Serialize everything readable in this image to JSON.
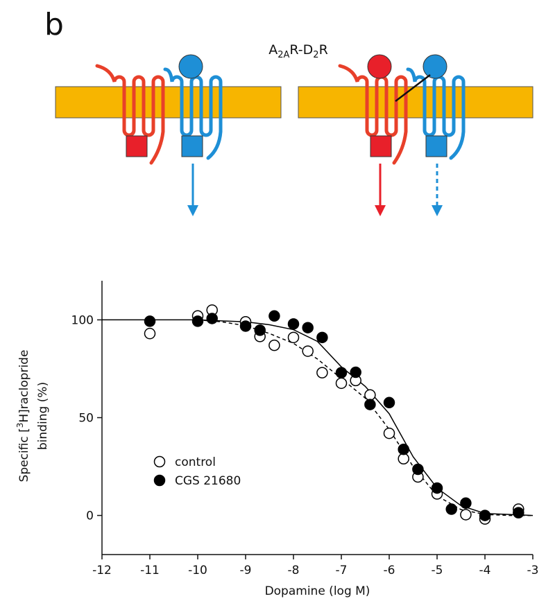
{
  "panel_label": "b",
  "diagram": {
    "label_parts": [
      "A",
      "2A",
      "R-D",
      "2",
      "R"
    ]
  },
  "chart_data": {
    "type": "scatter",
    "x_label": "Dopamine (log M)",
    "y_label_parts": [
      "Specific [",
      "3",
      "H]raclopride",
      "binding (%)"
    ],
    "xlim": [
      -12,
      -3
    ],
    "xticks": [
      -12,
      -11,
      -10,
      -9,
      -8,
      -7,
      -6,
      -5,
      -4,
      -3
    ],
    "ylim": [
      -20,
      120
    ],
    "yticks": [
      0,
      50,
      100
    ],
    "series": [
      {
        "name": "control",
        "color": "#000000",
        "marker": "open",
        "x": [
          -11,
          -10,
          -9.7,
          -9,
          -8.7,
          -8.4,
          -8,
          -7.7,
          -7.4,
          -7,
          -6.7,
          -6.4,
          -6,
          -5.7,
          -5.4,
          -5,
          -4.4,
          -4,
          -3.3
        ],
        "values": [
          93,
          102,
          105,
          99,
          91.5,
          87,
          91,
          84,
          73,
          67.6,
          69,
          61.6,
          42,
          29,
          19.7,
          11,
          0.4,
          -1.8,
          3.2
        ]
      },
      {
        "name": "CGS 21680",
        "color": "#000000",
        "marker": "filled",
        "x": [
          -11,
          -10,
          -9.7,
          -9,
          -8.7,
          -8.4,
          -8,
          -7.7,
          -7.4,
          -7,
          -6.7,
          -6.4,
          -6,
          -5.7,
          -5.4,
          -5,
          -4.7,
          -4.4,
          -4,
          -3.3
        ],
        "values": [
          99.3,
          99.3,
          100.7,
          96.8,
          94.7,
          102,
          97.9,
          96,
          91,
          73,
          73.2,
          56.7,
          57.7,
          33.8,
          23.6,
          14,
          3.2,
          6.3,
          0,
          1.4
        ]
      }
    ],
    "fits": [
      {
        "style": "dashed",
        "color": "#000000",
        "x": [
          -10,
          -9.5,
          -9,
          -8.5,
          -8,
          -7.5,
          -7,
          -6.5,
          -6,
          -5.5,
          -5,
          -4.5,
          -4,
          -3.5,
          -3
        ],
        "values": [
          100,
          99,
          97,
          93,
          88,
          80,
          70,
          60,
          44,
          25,
          10,
          3,
          0.5,
          0,
          0
        ]
      },
      {
        "style": "solid",
        "color": "#000000",
        "x": [
          -12,
          -11,
          -10,
          -9.5,
          -9,
          -8.5,
          -8,
          -7.5,
          -7,
          -6.5,
          -6,
          -5.5,
          -5,
          -4.5,
          -4,
          -3.5,
          -3
        ],
        "values": [
          100,
          100,
          100,
          99.5,
          99,
          97.5,
          95,
          89,
          76,
          66,
          52,
          30,
          14,
          5,
          1,
          0.5,
          0
        ]
      }
    ]
  }
}
